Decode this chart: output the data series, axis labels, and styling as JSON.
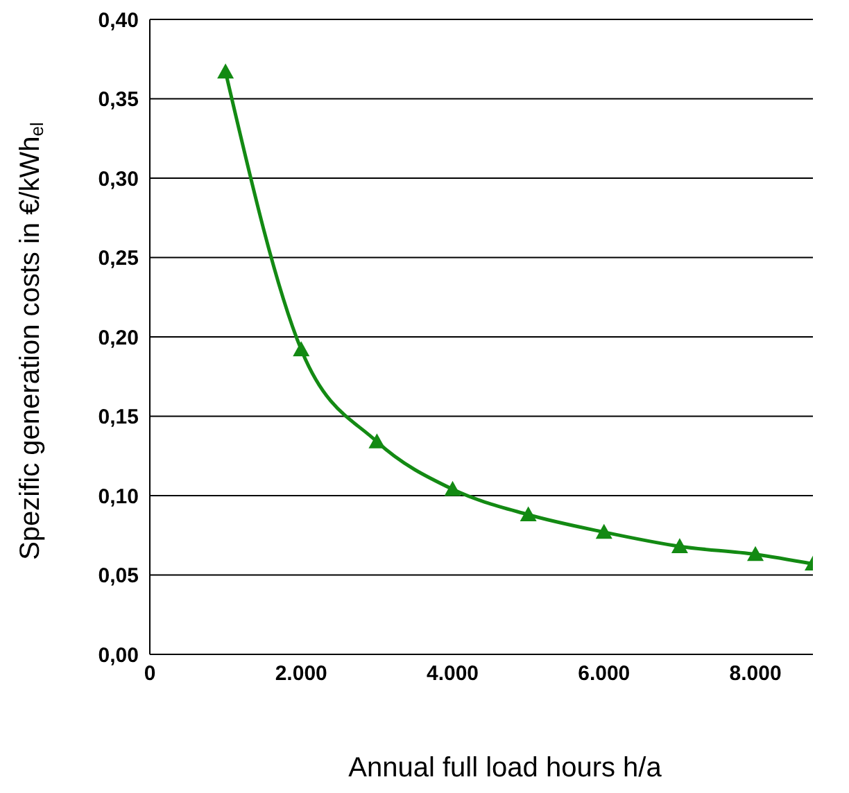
{
  "chart_data": {
    "type": "line",
    "xlabel": "Annual full load hours h/a",
    "ylabel": "Spezific generation costs in €/kWh$_{el}$",
    "x": [
      1000,
      2000,
      3000,
      4000,
      5000,
      6000,
      7000,
      8000,
      8760
    ],
    "series": [
      {
        "color": "#138a13",
        "values": [
          0.367,
          0.192,
          0.134,
          0.104,
          0.088,
          0.077,
          0.068,
          0.063,
          0.057
        ]
      }
    ],
    "xlim": [
      0,
      8760
    ],
    "xticks": [
      {
        "value": 0,
        "label": "0"
      },
      {
        "value": 2000,
        "label": "2.000"
      },
      {
        "value": 4000,
        "label": "4.000"
      },
      {
        "value": 6000,
        "label": "6.000"
      },
      {
        "value": 8000,
        "label": "8.000"
      }
    ],
    "ylim": [
      0,
      0.4
    ],
    "yticks": [
      {
        "value": 0,
        "label": "0,00"
      },
      {
        "value": 0.05,
        "label": "0,05"
      },
      {
        "value": 0.1,
        "label": "0,10"
      },
      {
        "value": 0.15,
        "label": "0,15"
      },
      {
        "value": 0.2,
        "label": "0,20"
      },
      {
        "value": 0.25,
        "label": "0,25"
      },
      {
        "value": 0.3,
        "label": "0,30"
      },
      {
        "value": 0.35,
        "label": "0,35"
      },
      {
        "value": 0.4,
        "label": "0,40"
      }
    ],
    "grid": "y",
    "legend": false,
    "marker": "triangle",
    "line_style": "solid"
  }
}
